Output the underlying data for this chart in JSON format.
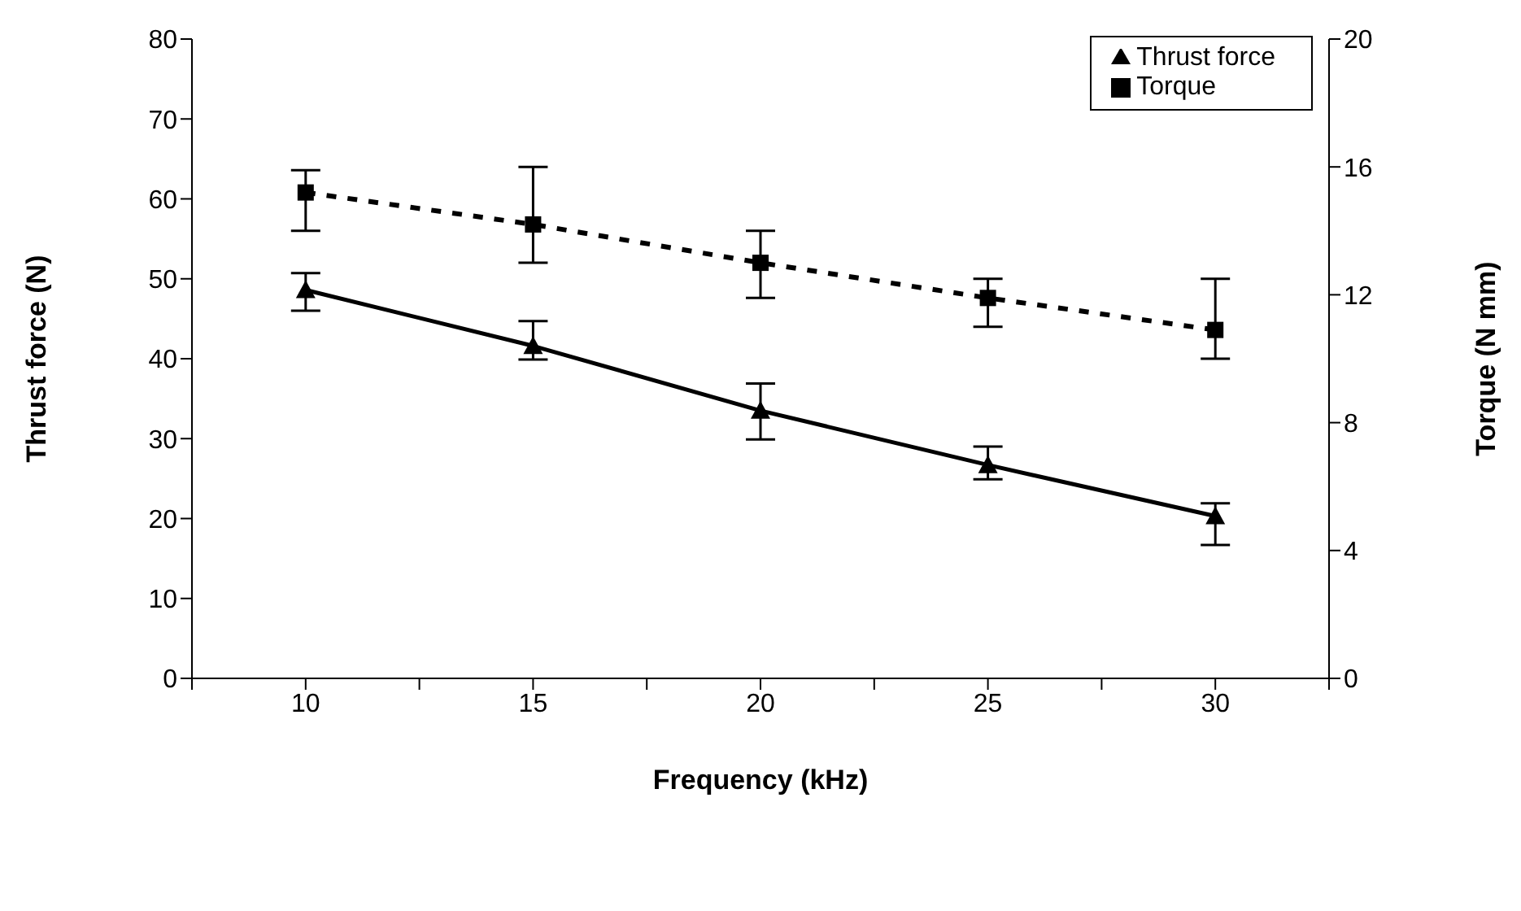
{
  "chart_data": {
    "type": "line",
    "xlabel": "Frequency (kHz)",
    "ylabel": "Thrust  force (N)",
    "y2label": "Torque (N mm)",
    "x": [
      10,
      15,
      20,
      25,
      30
    ],
    "series": [
      {
        "name": "Thrust force",
        "color": "#000000",
        "values": [
          48.6,
          41.6,
          33.5,
          26.7,
          20.3
        ],
        "errors": [
          [
            46,
            50.7
          ],
          [
            39.9,
            44.7
          ],
          [
            29.9,
            36.9
          ],
          [
            24.9,
            29
          ],
          [
            16.7,
            21.9
          ]
        ],
        "marker": "triangle",
        "line_style": "solid"
      },
      {
        "name": "Torque",
        "color": "#000000",
        "axis": "y2",
        "values": [
          15.2,
          14.2,
          13,
          11.9,
          10.9
        ],
        "errors": [
          [
            14,
            15.9
          ],
          [
            13,
            16
          ],
          [
            11.9,
            14
          ],
          [
            11,
            12.5
          ],
          [
            10,
            12.5
          ]
        ],
        "marker": "square",
        "line_style": "dashed"
      }
    ],
    "xlim": [
      7.5,
      32.5
    ],
    "xticks": [
      {
        "value": 7.5,
        "label": null
      },
      10,
      {
        "value": 12.5,
        "label": null
      },
      15,
      {
        "value": 17.5,
        "label": null
      },
      20,
      {
        "value": 22.5,
        "label": null
      },
      25,
      {
        "value": 27.5,
        "label": null
      },
      30,
      {
        "value": 32.5,
        "label": null
      }
    ],
    "ylim": [
      0,
      80
    ],
    "yticks": [
      0,
      10,
      20,
      30,
      40,
      50,
      60,
      70,
      80
    ],
    "y2lim": [
      0,
      20
    ],
    "y2ticks": [
      0,
      4,
      8,
      12,
      16,
      20
    ],
    "grid": false,
    "legend": "top right"
  }
}
